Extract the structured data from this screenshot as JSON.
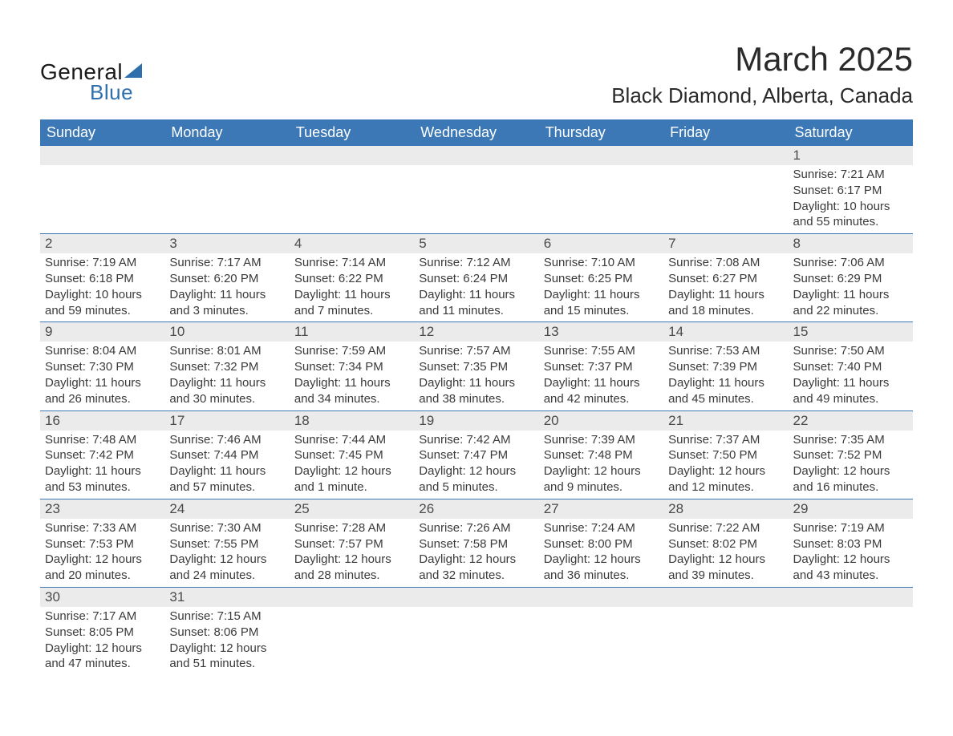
{
  "logo": {
    "text1": "General",
    "text2": "Blue",
    "triangle_color": "#2f6fad"
  },
  "title": "March 2025",
  "subtitle": "Black Diamond, Alberta, Canada",
  "colors": {
    "header_bg": "#3b78b5",
    "header_text": "#ffffff",
    "daynum_bg": "#ebebeb",
    "week_divider": "#3b78b5",
    "body_text": "#3a3a3a"
  },
  "day_labels": [
    "Sunday",
    "Monday",
    "Tuesday",
    "Wednesday",
    "Thursday",
    "Friday",
    "Saturday"
  ],
  "weeks": [
    [
      {
        "day": ""
      },
      {
        "day": ""
      },
      {
        "day": ""
      },
      {
        "day": ""
      },
      {
        "day": ""
      },
      {
        "day": ""
      },
      {
        "day": "1",
        "sunrise": "7:21 AM",
        "sunset": "6:17 PM",
        "daylight": "10 hours and 55 minutes."
      }
    ],
    [
      {
        "day": "2",
        "sunrise": "7:19 AM",
        "sunset": "6:18 PM",
        "daylight": "10 hours and 59 minutes."
      },
      {
        "day": "3",
        "sunrise": "7:17 AM",
        "sunset": "6:20 PM",
        "daylight": "11 hours and 3 minutes."
      },
      {
        "day": "4",
        "sunrise": "7:14 AM",
        "sunset": "6:22 PM",
        "daylight": "11 hours and 7 minutes."
      },
      {
        "day": "5",
        "sunrise": "7:12 AM",
        "sunset": "6:24 PM",
        "daylight": "11 hours and 11 minutes."
      },
      {
        "day": "6",
        "sunrise": "7:10 AM",
        "sunset": "6:25 PM",
        "daylight": "11 hours and 15 minutes."
      },
      {
        "day": "7",
        "sunrise": "7:08 AM",
        "sunset": "6:27 PM",
        "daylight": "11 hours and 18 minutes."
      },
      {
        "day": "8",
        "sunrise": "7:06 AM",
        "sunset": "6:29 PM",
        "daylight": "11 hours and 22 minutes."
      }
    ],
    [
      {
        "day": "9",
        "sunrise": "8:04 AM",
        "sunset": "7:30 PM",
        "daylight": "11 hours and 26 minutes."
      },
      {
        "day": "10",
        "sunrise": "8:01 AM",
        "sunset": "7:32 PM",
        "daylight": "11 hours and 30 minutes."
      },
      {
        "day": "11",
        "sunrise": "7:59 AM",
        "sunset": "7:34 PM",
        "daylight": "11 hours and 34 minutes."
      },
      {
        "day": "12",
        "sunrise": "7:57 AM",
        "sunset": "7:35 PM",
        "daylight": "11 hours and 38 minutes."
      },
      {
        "day": "13",
        "sunrise": "7:55 AM",
        "sunset": "7:37 PM",
        "daylight": "11 hours and 42 minutes."
      },
      {
        "day": "14",
        "sunrise": "7:53 AM",
        "sunset": "7:39 PM",
        "daylight": "11 hours and 45 minutes."
      },
      {
        "day": "15",
        "sunrise": "7:50 AM",
        "sunset": "7:40 PM",
        "daylight": "11 hours and 49 minutes."
      }
    ],
    [
      {
        "day": "16",
        "sunrise": "7:48 AM",
        "sunset": "7:42 PM",
        "daylight": "11 hours and 53 minutes."
      },
      {
        "day": "17",
        "sunrise": "7:46 AM",
        "sunset": "7:44 PM",
        "daylight": "11 hours and 57 minutes."
      },
      {
        "day": "18",
        "sunrise": "7:44 AM",
        "sunset": "7:45 PM",
        "daylight": "12 hours and 1 minute."
      },
      {
        "day": "19",
        "sunrise": "7:42 AM",
        "sunset": "7:47 PM",
        "daylight": "12 hours and 5 minutes."
      },
      {
        "day": "20",
        "sunrise": "7:39 AM",
        "sunset": "7:48 PM",
        "daylight": "12 hours and 9 minutes."
      },
      {
        "day": "21",
        "sunrise": "7:37 AM",
        "sunset": "7:50 PM",
        "daylight": "12 hours and 12 minutes."
      },
      {
        "day": "22",
        "sunrise": "7:35 AM",
        "sunset": "7:52 PM",
        "daylight": "12 hours and 16 minutes."
      }
    ],
    [
      {
        "day": "23",
        "sunrise": "7:33 AM",
        "sunset": "7:53 PM",
        "daylight": "12 hours and 20 minutes."
      },
      {
        "day": "24",
        "sunrise": "7:30 AM",
        "sunset": "7:55 PM",
        "daylight": "12 hours and 24 minutes."
      },
      {
        "day": "25",
        "sunrise": "7:28 AM",
        "sunset": "7:57 PM",
        "daylight": "12 hours and 28 minutes."
      },
      {
        "day": "26",
        "sunrise": "7:26 AM",
        "sunset": "7:58 PM",
        "daylight": "12 hours and 32 minutes."
      },
      {
        "day": "27",
        "sunrise": "7:24 AM",
        "sunset": "8:00 PM",
        "daylight": "12 hours and 36 minutes."
      },
      {
        "day": "28",
        "sunrise": "7:22 AM",
        "sunset": "8:02 PM",
        "daylight": "12 hours and 39 minutes."
      },
      {
        "day": "29",
        "sunrise": "7:19 AM",
        "sunset": "8:03 PM",
        "daylight": "12 hours and 43 minutes."
      }
    ],
    [
      {
        "day": "30",
        "sunrise": "7:17 AM",
        "sunset": "8:05 PM",
        "daylight": "12 hours and 47 minutes."
      },
      {
        "day": "31",
        "sunrise": "7:15 AM",
        "sunset": "8:06 PM",
        "daylight": "12 hours and 51 minutes."
      },
      {
        "day": ""
      },
      {
        "day": ""
      },
      {
        "day": ""
      },
      {
        "day": ""
      },
      {
        "day": ""
      }
    ]
  ],
  "labels": {
    "sunrise": "Sunrise:",
    "sunset": "Sunset:",
    "daylight": "Daylight:"
  }
}
